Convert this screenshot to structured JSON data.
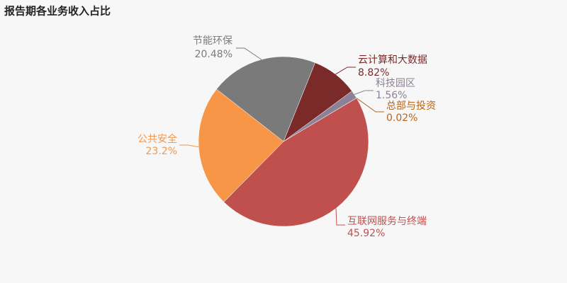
{
  "chart_data": {
    "type": "pie",
    "title": "报告期各业务收入占比",
    "categories": [
      "云计算和大数据",
      "科技园区",
      "总部与投资",
      "互联网服务与终端",
      "公共安全",
      "节能环保"
    ],
    "values": [
      8.82,
      1.56,
      0.02,
      45.92,
      23.2,
      20.48
    ],
    "value_labels": [
      "8.82%",
      "1.56%",
      "0.02%",
      "45.92%",
      "23.2%",
      "20.48%"
    ],
    "colors": [
      "#7b2a2a",
      "#8c8297",
      "#b8651b",
      "#c0504d",
      "#f79646",
      "#7a7a7a"
    ]
  }
}
